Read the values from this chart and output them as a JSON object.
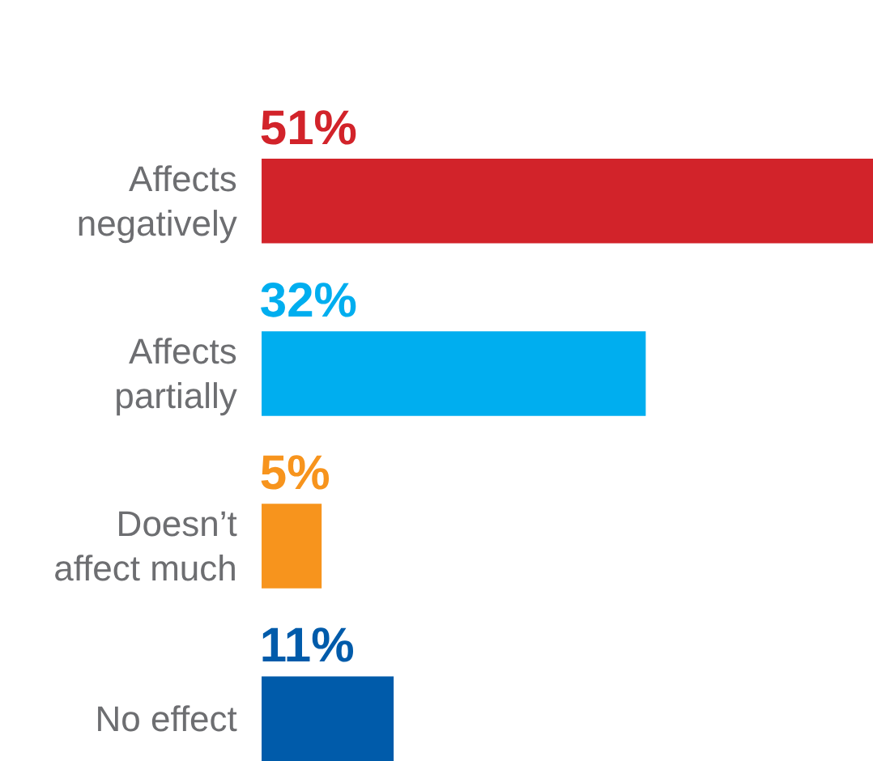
{
  "chart_data": {
    "type": "bar",
    "orientation": "horizontal",
    "categories": [
      "Affects negatively",
      "Affects partially",
      "Doesn’t affect much",
      "No effect"
    ],
    "values": [
      51,
      32,
      5,
      11
    ],
    "value_labels": [
      "51%",
      "32%",
      "5%",
      "11%"
    ],
    "colors": [
      "#d2232a",
      "#00aeef",
      "#f7941d",
      "#005baa"
    ]
  }
}
